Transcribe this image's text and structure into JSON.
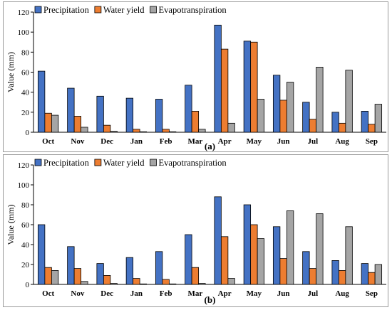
{
  "colors": {
    "precipitation": "#4472c4",
    "water_yield": "#ed7d31",
    "evapotranspiration": "#a5a5a5",
    "bar_stroke": "#000000",
    "axis": "#000000"
  },
  "chart_data": [
    {
      "type": "bar",
      "panel_label": "(a)",
      "categories": [
        "Oct",
        "Nov",
        "Dec",
        "Jan",
        "Feb",
        "Mar",
        "Apr",
        "May",
        "Jun",
        "Jul",
        "Aug",
        "Sep"
      ],
      "series": [
        {
          "name": "Precipitation",
          "values": [
            61,
            44,
            36,
            34,
            33,
            47,
            107,
            91,
            57,
            30,
            20,
            21
          ]
        },
        {
          "name": "Water yield",
          "values": [
            19,
            16,
            7,
            3,
            3,
            21,
            83,
            90,
            32,
            13,
            9,
            8
          ]
        },
        {
          "name": "Evapotranspiration",
          "values": [
            17,
            5,
            1,
            0.5,
            0.5,
            3,
            9,
            33,
            50,
            65,
            62,
            28
          ]
        }
      ],
      "ylabel": "Value (mm)",
      "ylim": [
        0,
        120
      ],
      "yticks": [
        0,
        20,
        40,
        60,
        80,
        100,
        120
      ],
      "grid": false,
      "legend": "top-left"
    },
    {
      "type": "bar",
      "panel_label": "(b)",
      "categories": [
        "Oct",
        "Nov",
        "Dec",
        "Jan",
        "Feb",
        "Mar",
        "Apr",
        "May",
        "Jun",
        "Jul",
        "Aug",
        "Sep"
      ],
      "series": [
        {
          "name": "Precipitation",
          "values": [
            60,
            38,
            21,
            27,
            33,
            50,
            88,
            80,
            58,
            33,
            24,
            21
          ]
        },
        {
          "name": "Water yield",
          "values": [
            17,
            16,
            9,
            6,
            5,
            17,
            48,
            60,
            26,
            16,
            14,
            12
          ]
        },
        {
          "name": "Evapotranspiration",
          "values": [
            14,
            3,
            1,
            0.5,
            0.5,
            1,
            6,
            46,
            74,
            71,
            58,
            20
          ]
        }
      ],
      "ylabel": "Value (mm)",
      "ylim": [
        0,
        120
      ],
      "yticks": [
        0,
        20,
        40,
        60,
        80,
        100,
        120
      ],
      "grid": false,
      "legend": "top-left"
    }
  ]
}
